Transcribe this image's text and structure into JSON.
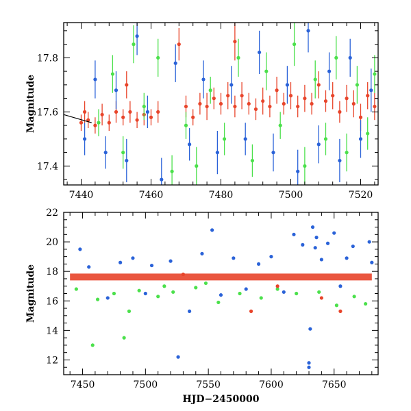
{
  "chart_data": [
    {
      "type": "scatter",
      "panel": "top",
      "xlabel": "",
      "ylabel": "Magnitude",
      "xlim": [
        7435,
        7525
      ],
      "ylim": [
        17.93,
        17.33
      ],
      "y_inverted": true,
      "x_ticks": [
        7440,
        7460,
        7480,
        7500,
        7520
      ],
      "y_ticks": [
        17.4,
        17.6,
        17.8
      ],
      "x_tick_labels": [
        "7440",
        "7460",
        "7480",
        "7500",
        "7520"
      ],
      "y_tick_labels": [
        "17.4",
        "17.6",
        "17.8"
      ],
      "grid": false,
      "legend": "none",
      "error_bars": true,
      "reference_line": {
        "x": [
          7435,
          7443
        ],
        "y": [
          17.59,
          17.56
        ],
        "color": "#000000"
      },
      "series": [
        {
          "color": "#e8442a",
          "points": [
            [
              7440,
              17.56,
              0.03
            ],
            [
              7441,
              17.6,
              0.04
            ],
            [
              7442,
              17.57,
              0.03
            ],
            [
              7444,
              17.55,
              0.03
            ],
            [
              7446,
              17.59,
              0.04
            ],
            [
              7448,
              17.56,
              0.03
            ],
            [
              7450,
              17.6,
              0.04
            ],
            [
              7452,
              17.58,
              0.03
            ],
            [
              7454,
              17.6,
              0.04
            ],
            [
              7456,
              17.57,
              0.03
            ],
            [
              7458,
              17.59,
              0.04
            ],
            [
              7460,
              17.58,
              0.03
            ],
            [
              7462,
              17.6,
              0.04
            ],
            [
              7470,
              17.62,
              0.04
            ],
            [
              7472,
              17.58,
              0.03
            ],
            [
              7474,
              17.63,
              0.04
            ],
            [
              7476,
              17.62,
              0.05
            ],
            [
              7478,
              17.65,
              0.04
            ],
            [
              7480,
              17.63,
              0.04
            ],
            [
              7482,
              17.66,
              0.05
            ],
            [
              7484,
              17.62,
              0.04
            ],
            [
              7486,
              17.66,
              0.05
            ],
            [
              7488,
              17.63,
              0.04
            ],
            [
              7490,
              17.61,
              0.04
            ],
            [
              7492,
              17.64,
              0.05
            ],
            [
              7494,
              17.62,
              0.04
            ],
            [
              7496,
              17.68,
              0.05
            ],
            [
              7498,
              17.63,
              0.04
            ],
            [
              7500,
              17.66,
              0.05
            ],
            [
              7502,
              17.62,
              0.04
            ],
            [
              7504,
              17.65,
              0.05
            ],
            [
              7506,
              17.63,
              0.04
            ],
            [
              7508,
              17.7,
              0.05
            ],
            [
              7510,
              17.64,
              0.04
            ],
            [
              7512,
              17.66,
              0.05
            ],
            [
              7514,
              17.6,
              0.04
            ],
            [
              7516,
              17.65,
              0.05
            ],
            [
              7518,
              17.63,
              0.05
            ],
            [
              7520,
              17.58,
              0.05
            ],
            [
              7522,
              17.66,
              0.05
            ],
            [
              7524,
              17.62,
              0.05
            ],
            [
              7484,
              17.86,
              0.07
            ],
            [
              7468,
              17.85,
              0.06
            ],
            [
              7453,
              17.7,
              0.05
            ]
          ]
        },
        {
          "color": "#4be04b",
          "points": [
            [
              7445,
              17.56,
              0.05
            ],
            [
              7449,
              17.74,
              0.07
            ],
            [
              7452,
              17.45,
              0.06
            ],
            [
              7455,
              17.85,
              0.07
            ],
            [
              7458,
              17.62,
              0.05
            ],
            [
              7462,
              17.8,
              0.07
            ],
            [
              7466,
              17.38,
              0.06
            ],
            [
              7470,
              17.55,
              0.05
            ],
            [
              7473,
              17.4,
              0.07
            ],
            [
              7477,
              17.68,
              0.05
            ],
            [
              7481,
              17.5,
              0.06
            ],
            [
              7485,
              17.8,
              0.07
            ],
            [
              7489,
              17.42,
              0.06
            ],
            [
              7493,
              17.75,
              0.07
            ],
            [
              7497,
              17.55,
              0.05
            ],
            [
              7501,
              17.85,
              0.08
            ],
            [
              7504,
              17.4,
              0.07
            ],
            [
              7507,
              17.72,
              0.07
            ],
            [
              7510,
              17.5,
              0.06
            ],
            [
              7513,
              17.8,
              0.08
            ],
            [
              7516,
              17.45,
              0.07
            ],
            [
              7519,
              17.7,
              0.07
            ],
            [
              7522,
              17.52,
              0.06
            ],
            [
              7524,
              17.74,
              0.07
            ]
          ]
        },
        {
          "color": "#2a62d8",
          "points": [
            [
              7441,
              17.5,
              0.06
            ],
            [
              7444,
              17.72,
              0.07
            ],
            [
              7447,
              17.45,
              0.06
            ],
            [
              7450,
              17.68,
              0.07
            ],
            [
              7453,
              17.42,
              0.08
            ],
            [
              7456,
              17.88,
              0.07
            ],
            [
              7459,
              17.6,
              0.06
            ],
            [
              7463,
              17.35,
              0.08
            ],
            [
              7467,
              17.78,
              0.07
            ],
            [
              7471,
              17.48,
              0.06
            ],
            [
              7475,
              17.72,
              0.07
            ],
            [
              7479,
              17.45,
              0.08
            ],
            [
              7483,
              17.7,
              0.07
            ],
            [
              7487,
              17.5,
              0.06
            ],
            [
              7491,
              17.82,
              0.08
            ],
            [
              7495,
              17.45,
              0.07
            ],
            [
              7499,
              17.7,
              0.07
            ],
            [
              7502,
              17.38,
              0.08
            ],
            [
              7505,
              17.9,
              0.08
            ],
            [
              7508,
              17.48,
              0.07
            ],
            [
              7511,
              17.75,
              0.07
            ],
            [
              7514,
              17.42,
              0.08
            ],
            [
              7517,
              17.8,
              0.07
            ],
            [
              7520,
              17.5,
              0.07
            ],
            [
              7523,
              17.68,
              0.08
            ]
          ]
        }
      ]
    },
    {
      "type": "scatter",
      "panel": "bottom",
      "xlabel": "HJD−2450000",
      "ylabel": "Magnitude",
      "xlim": [
        7435,
        7685
      ],
      "ylim": [
        22,
        11
      ],
      "y_inverted": true,
      "x_ticks": [
        7450,
        7500,
        7550,
        7600,
        7650
      ],
      "y_ticks": [
        12,
        14,
        16,
        18,
        20,
        22
      ],
      "x_tick_labels": [
        "7450",
        "7500",
        "7550",
        "7600",
        "7650"
      ],
      "y_tick_labels": [
        "12",
        "14",
        "16",
        "18",
        "20",
        "22"
      ],
      "grid": false,
      "legend": "none",
      "error_bars": true,
      "baseline_band": {
        "x": [
          7440,
          7680
        ],
        "y": 17.62,
        "color": "#e8442a"
      },
      "series": [
        {
          "color": "#2a62d8",
          "points": [
            [
              7448,
              19.5,
              0.1
            ],
            [
              7455,
              18.3,
              0.1
            ],
            [
              7470,
              16.2,
              0.1
            ],
            [
              7480,
              18.6,
              0.1
            ],
            [
              7490,
              18.9,
              0.1
            ],
            [
              7500,
              16.5,
              0.1
            ],
            [
              7505,
              18.4,
              0.1
            ],
            [
              7520,
              18.7,
              0.1
            ],
            [
              7526,
              12.2,
              0.1
            ],
            [
              7535,
              15.3,
              0.1
            ],
            [
              7545,
              19.2,
              0.1
            ],
            [
              7553,
              20.8,
              0.1
            ],
            [
              7560,
              16.4,
              0.1
            ],
            [
              7570,
              18.9,
              0.1
            ],
            [
              7580,
              16.8,
              0.1
            ],
            [
              7590,
              18.5,
              0.1
            ],
            [
              7600,
              19.0,
              0.1
            ],
            [
              7610,
              16.6,
              0.1
            ],
            [
              7618,
              20.5,
              0.1
            ],
            [
              7625,
              19.8,
              0.1
            ],
            [
              7630,
              11.5,
              0.1
            ],
            [
              7630,
              11.8,
              0.1
            ],
            [
              7631,
              14.1,
              0.1
            ],
            [
              7633,
              21.0,
              0.1
            ],
            [
              7635,
              19.6,
              0.1
            ],
            [
              7636,
              20.3,
              0.1
            ],
            [
              7640,
              18.8,
              0.1
            ],
            [
              7645,
              19.9,
              0.1
            ],
            [
              7650,
              20.6,
              0.1
            ],
            [
              7655,
              17.0,
              0.1
            ],
            [
              7660,
              18.9,
              0.1
            ],
            [
              7665,
              19.7,
              0.1
            ],
            [
              7678,
              20.0,
              0.1
            ],
            [
              7680,
              18.6,
              0.1
            ]
          ]
        },
        {
          "color": "#4be04b",
          "points": [
            [
              7445,
              16.8,
              0.1
            ],
            [
              7458,
              13.0,
              0.1
            ],
            [
              7462,
              16.1,
              0.1
            ],
            [
              7475,
              16.5,
              0.1
            ],
            [
              7483,
              13.5,
              0.1
            ],
            [
              7487,
              15.3,
              0.1
            ],
            [
              7495,
              16.7,
              0.1
            ],
            [
              7510,
              16.3,
              0.1
            ],
            [
              7515,
              17.0,
              0.1
            ],
            [
              7522,
              16.6,
              0.1
            ],
            [
              7540,
              16.9,
              0.1
            ],
            [
              7548,
              17.2,
              0.1
            ],
            [
              7558,
              15.9,
              0.1
            ],
            [
              7575,
              16.5,
              0.1
            ],
            [
              7592,
              16.2,
              0.1
            ],
            [
              7605,
              16.8,
              0.1
            ],
            [
              7620,
              16.5,
              0.1
            ],
            [
              7638,
              16.6,
              0.1
            ],
            [
              7652,
              15.7,
              0.1
            ],
            [
              7666,
              16.3,
              0.1
            ],
            [
              7675,
              15.8,
              0.1
            ]
          ]
        },
        {
          "color": "#e8442a",
          "points": [
            [
              7584,
              15.3,
              0.1
            ],
            [
              7640,
              16.2,
              0.1
            ],
            [
              7655,
              15.3,
              0.1
            ],
            [
              7530,
              17.8,
              0.1
            ],
            [
              7605,
              17.0,
              0.1
            ]
          ]
        }
      ]
    }
  ]
}
